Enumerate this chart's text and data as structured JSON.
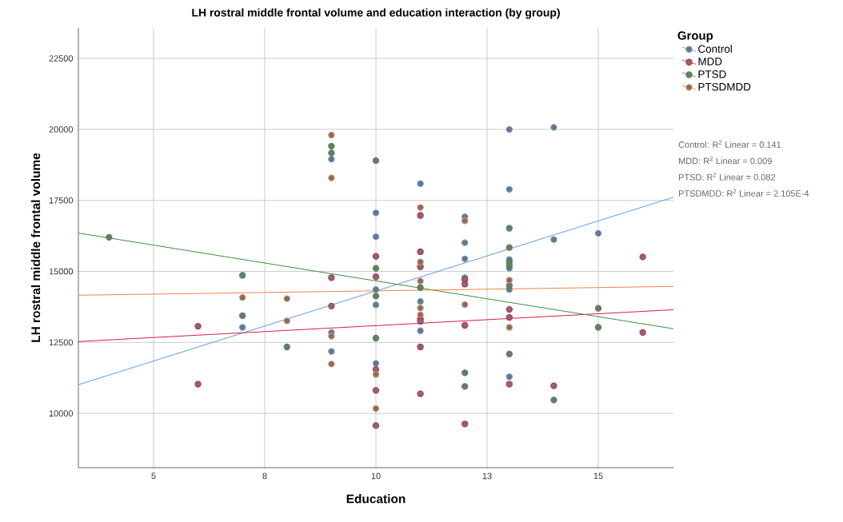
{
  "chart_data": {
    "type": "scatter",
    "title": "LH rostral middle frontal volume and education interaction (by group)",
    "xlabel": "Education",
    "ylabel": "LH rostral middle frontal volume",
    "legend_title": "Group",
    "xlim": [
      3.31,
      16.69
    ],
    "ylim": [
      8090,
      23570
    ],
    "xticks": [
      5,
      {
        "value": 7.5,
        "label": "8"
      },
      10,
      {
        "value": 12.5,
        "label": "13"
      },
      15
    ],
    "yticks": [
      10000,
      12500,
      15000,
      17500,
      20000,
      22500
    ],
    "grid": true,
    "legend": "right",
    "marker": "circle",
    "annotations": [
      "Control: R$^{2}$ Linear = 0.141",
      "MDD: R$^{2}$ Linear = 0.009",
      "PTSD: R$^{2}$ Linear = 0.082",
      "PTSDMDD: R$^{2}$ Linear = 2.105E-4"
    ],
    "series": [
      {
        "name": "Control",
        "color": "#5b9be6",
        "x": [
          7,
          9,
          9,
          9,
          10,
          10,
          10,
          10,
          10,
          11,
          11,
          11,
          12,
          12,
          12,
          12,
          13,
          13,
          13,
          13,
          13,
          13,
          14,
          14,
          15
        ],
        "values": [
          13030,
          18950,
          12850,
          12180,
          17060,
          16220,
          14360,
          13820,
          11760,
          18090,
          13940,
          12910,
          16920,
          16010,
          15440,
          14780,
          20000,
          17890,
          15420,
          15110,
          14360,
          11290,
          20070,
          16120,
          16340
        ]
      },
      {
        "name": "MDD",
        "color": "#d7194b",
        "x": [
          6,
          6,
          9,
          9,
          10,
          10,
          10,
          10,
          10,
          11,
          11,
          11,
          11,
          11,
          11,
          11,
          12,
          12,
          12,
          12,
          13,
          13,
          13,
          14,
          16,
          16
        ],
        "values": [
          13070,
          11030,
          14780,
          13780,
          15530,
          14810,
          11550,
          10810,
          9570,
          16970,
          15690,
          15160,
          13330,
          13240,
          12340,
          10690,
          14710,
          14550,
          13100,
          9630,
          13660,
          13380,
          11030,
          10970,
          15510,
          12850
        ]
      },
      {
        "name": "PTSD",
        "color": "#3f8f3f",
        "x": [
          4,
          7,
          7,
          8,
          9,
          9,
          10,
          10,
          10,
          10,
          11,
          12,
          12,
          13,
          13,
          13,
          13,
          13,
          13,
          14,
          15,
          15
        ],
        "values": [
          16200,
          14860,
          13440,
          12340,
          19410,
          19170,
          18900,
          15110,
          14130,
          12650,
          14430,
          11430,
          10950,
          16520,
          15840,
          15330,
          15210,
          14500,
          12090,
          10470,
          13700,
          13030
        ]
      },
      {
        "name": "PTSDMDD",
        "color": "#f0824a",
        "x": [
          7,
          8,
          8,
          9,
          9,
          9,
          9,
          10,
          10,
          11,
          11,
          11,
          11,
          11,
          12,
          12,
          13,
          13
        ],
        "values": [
          14080,
          14040,
          13260,
          19800,
          18290,
          12720,
          11740,
          11370,
          10170,
          17250,
          15330,
          14660,
          13710,
          13470,
          16780,
          13830,
          14690,
          13030
        ]
      },
      {
        "type": "line",
        "marker": "none",
        "color": "#5b9be6",
        "x": [
          3.31,
          16.69
        ],
        "values": [
          11010,
          17610
        ]
      },
      {
        "type": "line",
        "marker": "none",
        "color": "#d7194b",
        "x": [
          3.31,
          16.69
        ],
        "values": [
          12530,
          13650
        ]
      },
      {
        "type": "line",
        "marker": "none",
        "color": "#3f8f3f",
        "x": [
          3.31,
          16.69
        ],
        "values": [
          16350,
          12980
        ]
      },
      {
        "type": "line",
        "marker": "none",
        "color": "#f0824a",
        "x": [
          3.31,
          16.69
        ],
        "values": [
          14160,
          14470
        ]
      }
    ]
  }
}
